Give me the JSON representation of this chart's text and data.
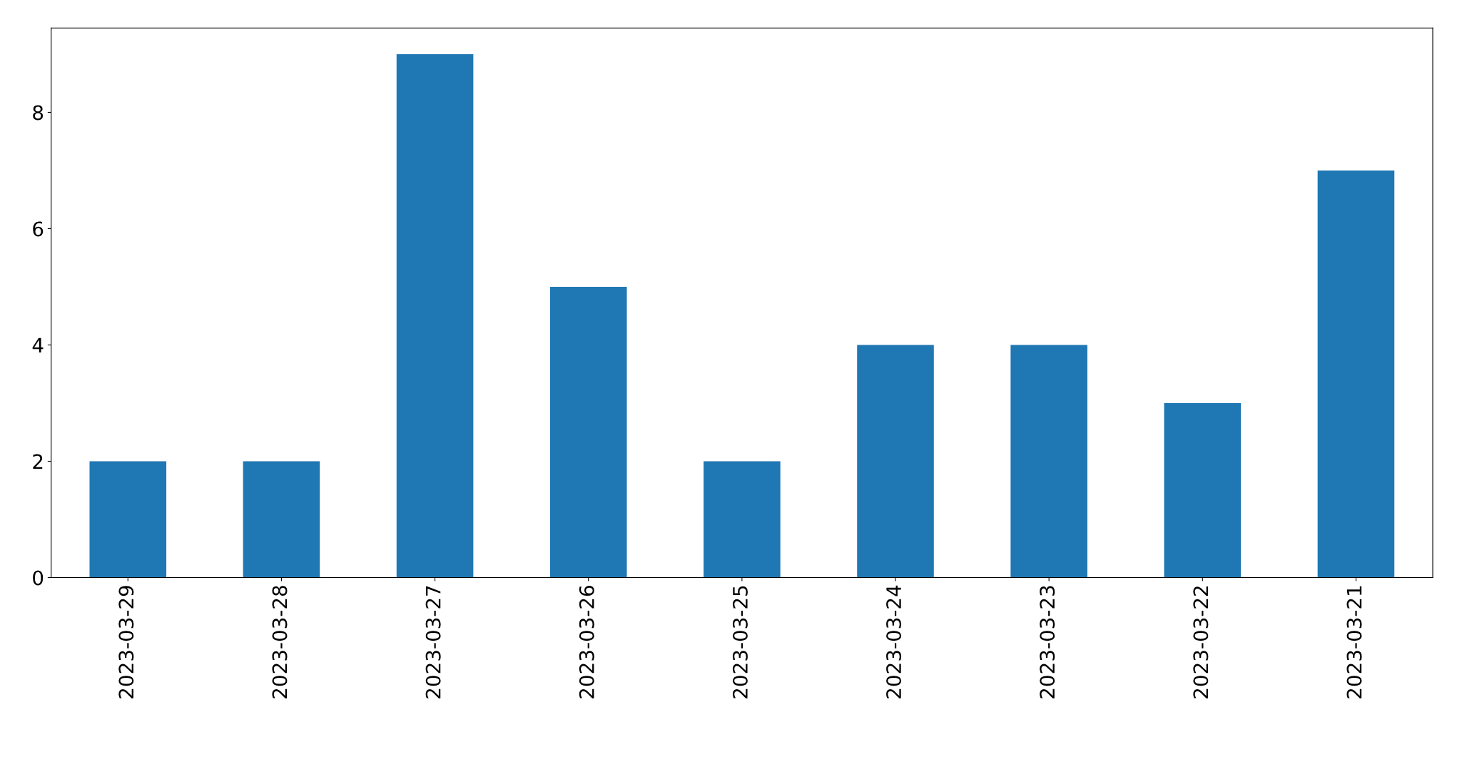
{
  "chart_data": {
    "type": "bar",
    "categories": [
      "2023-03-29",
      "2023-03-28",
      "2023-03-27",
      "2023-03-26",
      "2023-03-25",
      "2023-03-24",
      "2023-03-23",
      "2023-03-22",
      "2023-03-21"
    ],
    "values": [
      2,
      2,
      9,
      5,
      2,
      4,
      4,
      3,
      7
    ],
    "color": "#1f77b4",
    "ylim": [
      0,
      9.45
    ],
    "yticks": [
      0,
      2,
      4,
      6,
      8
    ],
    "grid": false,
    "legend": false
  }
}
